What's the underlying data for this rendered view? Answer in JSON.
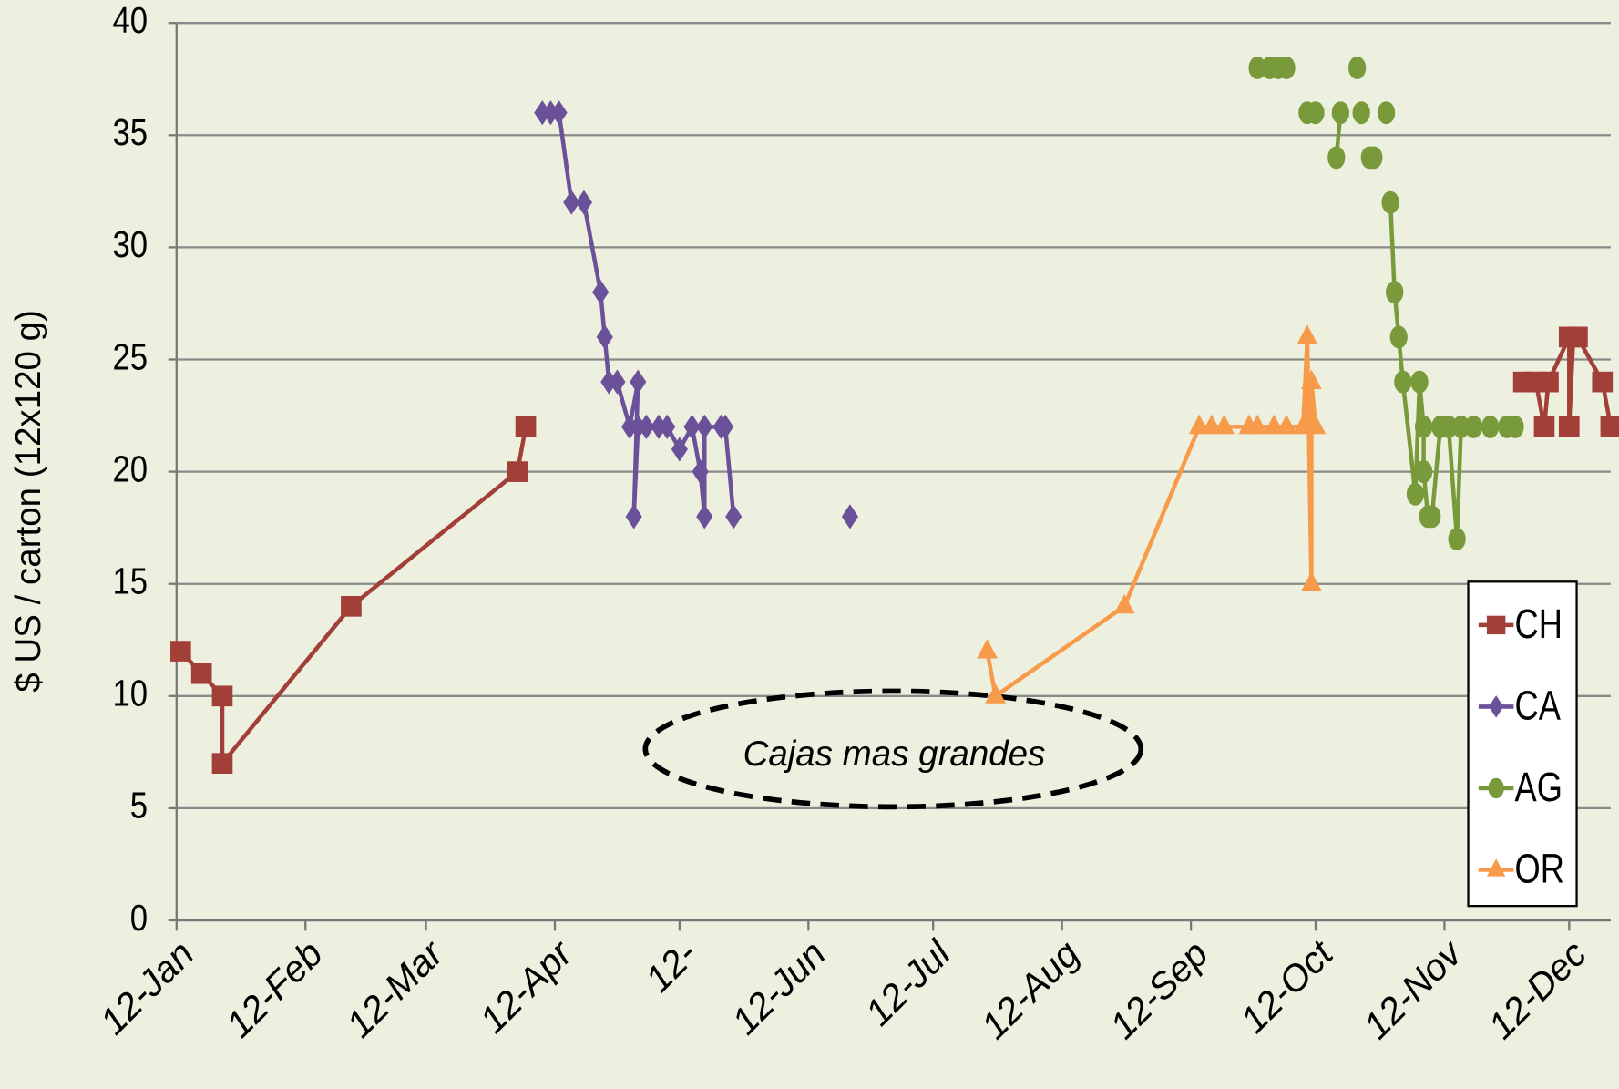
{
  "chart_data": {
    "type": "line",
    "y_label": "$ US / carton (12x120 g)",
    "annotation": "Cajas mas grandes",
    "xlim": [
      12,
      357
    ],
    "xticks": [
      {
        "value": 12,
        "label": "12-Jan"
      },
      {
        "value": 43,
        "label": "12-Feb"
      },
      {
        "value": 72,
        "label": "12-Mar"
      },
      {
        "value": 103,
        "label": "12-Apr"
      },
      {
        "value": 133,
        "label": "12-"
      },
      {
        "value": 164,
        "label": "12-Jun"
      },
      {
        "value": 194,
        "label": "12-Jul"
      },
      {
        "value": 225,
        "label": "12-Aug"
      },
      {
        "value": 256,
        "label": "12-Sep"
      },
      {
        "value": 286,
        "label": "12-Oct"
      },
      {
        "value": 317,
        "label": "12-Nov"
      },
      {
        "value": 347,
        "label": "12-Dec"
      }
    ],
    "ylim": [
      0,
      40
    ],
    "yticks": [
      0,
      5,
      10,
      15,
      20,
      25,
      30,
      35,
      40
    ],
    "grid": true,
    "legend": "right",
    "series": [
      {
        "name": "CH",
        "color": "#a23f38",
        "marker": "square",
        "x": [
          13,
          18,
          23,
          23,
          54,
          94,
          96,
          null,
          336,
          339,
          341,
          342,
          347,
          347,
          348,
          349,
          355,
          357
        ],
        "values": [
          12,
          11,
          10,
          7,
          14,
          20,
          22,
          null,
          24,
          24,
          22,
          24,
          26,
          22,
          26,
          26,
          24,
          22
        ]
      },
      {
        "name": "CA",
        "color": "#6b5199",
        "marker": "diamond",
        "x": [
          100,
          102,
          104,
          107,
          110,
          114,
          115,
          116,
          118,
          121,
          123,
          122,
          123,
          125,
          128,
          130,
          133,
          136,
          138,
          139,
          139,
          143,
          144,
          146,
          null,
          174
        ],
        "values": [
          36,
          36,
          36,
          32,
          32,
          28,
          26,
          24,
          24,
          22,
          24,
          18,
          22,
          22,
          22,
          22,
          21,
          22,
          20,
          18,
          22,
          22,
          22,
          18,
          null,
          18
        ]
      },
      {
        "name": "AG",
        "color": "#789a3b",
        "marker": "circle",
        "x": [
          272,
          275,
          277,
          279,
          null,
          284,
          286,
          null,
          291,
          292,
          null,
          296,
          null,
          297,
          null,
          299,
          300,
          null,
          303,
          null,
          304,
          305,
          306,
          307,
          310,
          311,
          312,
          312,
          313,
          314,
          316,
          318,
          320,
          321,
          324,
          328,
          332,
          334
        ],
        "values": [
          38,
          38,
          38,
          38,
          null,
          36,
          36,
          null,
          34,
          36,
          null,
          38,
          null,
          36,
          null,
          34,
          34,
          null,
          36,
          null,
          32,
          28,
          26,
          24,
          19,
          24,
          22,
          20,
          18,
          18,
          22,
          22,
          17,
          22,
          22,
          22,
          22,
          22
        ]
      },
      {
        "name": "OR",
        "color": "#f79a4a",
        "marker": "triangle",
        "x": [
          207,
          209,
          240,
          258,
          261,
          264,
          270,
          272,
          276,
          279,
          283,
          284,
          285,
          285,
          286
        ],
        "values": [
          12,
          10,
          14,
          22,
          22,
          22,
          22,
          22,
          22,
          22,
          22,
          26,
          15,
          24,
          22
        ]
      }
    ]
  }
}
